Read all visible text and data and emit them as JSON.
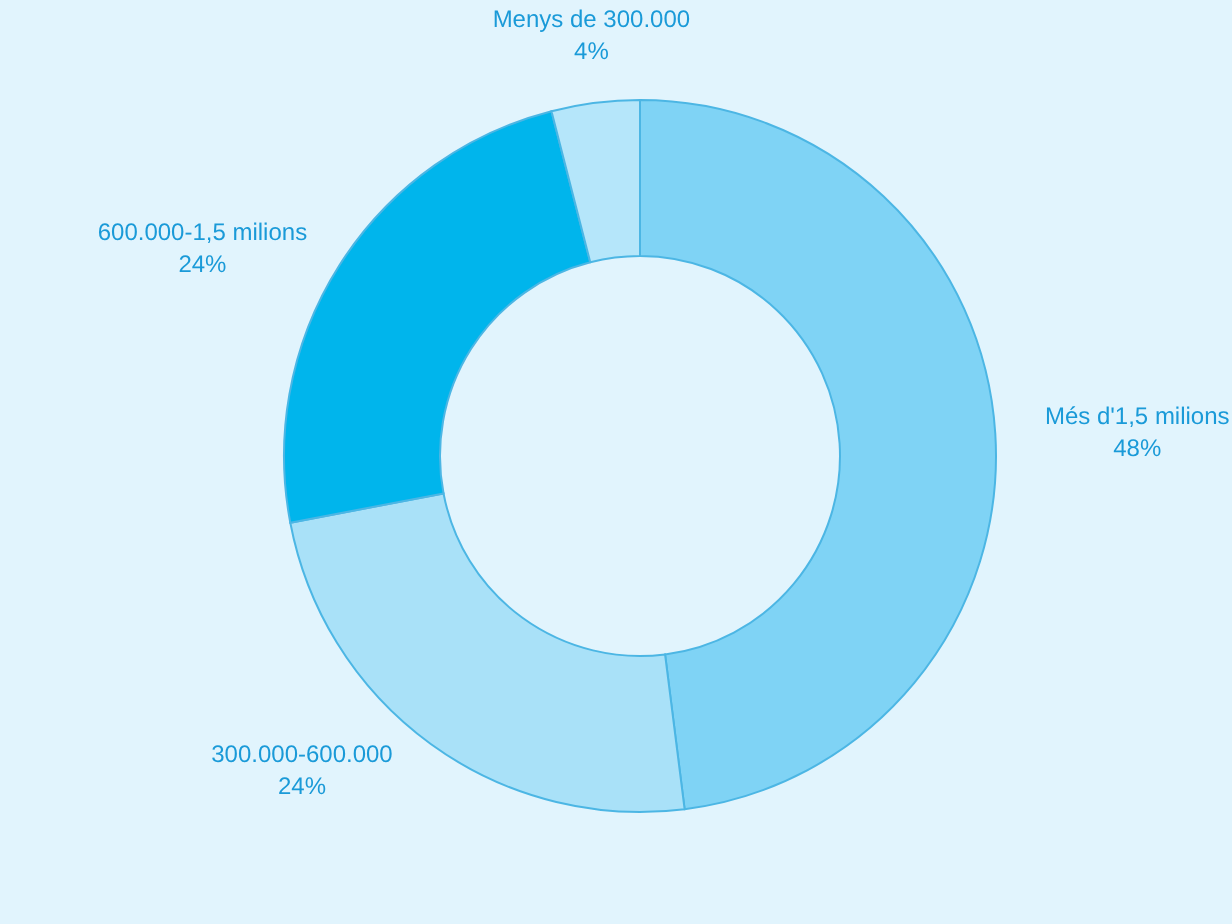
{
  "chart_data": {
    "type": "donut",
    "categories": [
      "Més d'1,5 milions",
      "300.000-600.000",
      "600.000-1,5 milions",
      "Menys de 300.000"
    ],
    "values": [
      48,
      24,
      24,
      4
    ],
    "colors": [
      "#7fd3f5",
      "#a9e1f8",
      "#00b5ec",
      "#b5e6fa"
    ],
    "value_labels": [
      "48%",
      "24%",
      "24%",
      "4%"
    ],
    "legend": false
  }
}
